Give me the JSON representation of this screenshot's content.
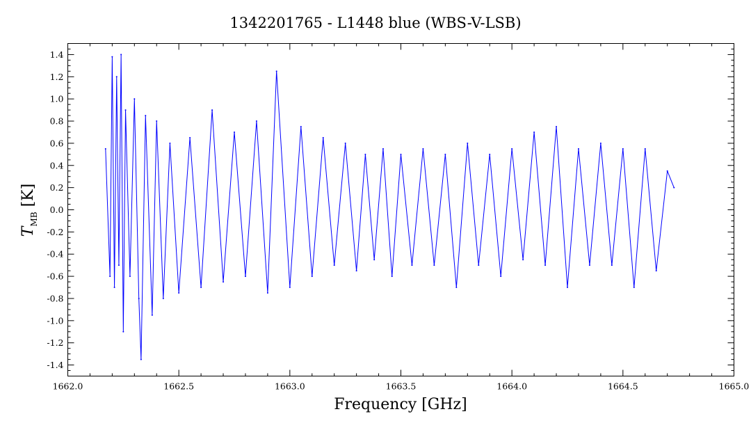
{
  "chart_data": {
    "type": "line",
    "title": "1342201765 - L1448 blue (WBS-V-LSB)",
    "xlabel": "Frequency [GHz]",
    "ylabel_main": "T",
    "ylabel_sub": "MB",
    "ylabel_unit": "[K]",
    "xlim": [
      1662.0,
      1665.0
    ],
    "ylim": [
      -1.5,
      1.5
    ],
    "xticks": [
      "1662.0",
      "1662.5",
      "1663.0",
      "1663.5",
      "1664.0",
      "1664.5",
      "1665.0"
    ],
    "yticks": [
      "1.4",
      "1.2",
      "1.0",
      "0.8",
      "0.6",
      "0.4",
      "0.2",
      "0.0",
      "-0.2",
      "-0.4",
      "-0.6",
      "-0.8",
      "-1.0",
      "-1.2",
      "-1.4"
    ],
    "grid": false,
    "series": [
      {
        "color": "#0000ff",
        "x": [
          1662.17,
          1662.19,
          1662.2,
          1662.21,
          1662.22,
          1662.23,
          1662.24,
          1662.25,
          1662.26,
          1662.28,
          1662.3,
          1662.32,
          1662.33,
          1662.35,
          1662.38,
          1662.4,
          1662.43,
          1662.46,
          1662.5,
          1662.55,
          1662.6,
          1662.65,
          1662.7,
          1662.75,
          1662.8,
          1662.85,
          1662.9,
          1662.94,
          1663.0,
          1663.05,
          1663.1,
          1663.15,
          1663.2,
          1663.25,
          1663.3,
          1663.34,
          1663.38,
          1663.42,
          1663.46,
          1663.5,
          1663.55,
          1663.6,
          1663.65,
          1663.7,
          1663.75,
          1663.8,
          1663.85,
          1663.9,
          1663.95,
          1664.0,
          1664.05,
          1664.1,
          1664.15,
          1664.2,
          1664.25,
          1664.3,
          1664.35,
          1664.4,
          1664.45,
          1664.5,
          1664.55,
          1664.6,
          1664.65,
          1664.7,
          1664.73
        ],
        "y": [
          0.55,
          -0.6,
          1.38,
          -0.7,
          1.2,
          -0.5,
          1.4,
          -1.1,
          0.9,
          -0.6,
          1.0,
          -0.8,
          -1.35,
          0.85,
          -0.95,
          0.8,
          -0.8,
          0.6,
          -0.75,
          0.65,
          -0.7,
          0.9,
          -0.65,
          0.7,
          -0.6,
          0.8,
          -0.75,
          1.25,
          -0.7,
          0.75,
          -0.6,
          0.65,
          -0.5,
          0.6,
          -0.55,
          0.5,
          -0.45,
          0.55,
          -0.6,
          0.5,
          -0.5,
          0.55,
          -0.5,
          0.5,
          -0.7,
          0.6,
          -0.5,
          0.5,
          -0.6,
          0.55,
          -0.45,
          0.7,
          -0.5,
          0.75,
          -0.7,
          0.55,
          -0.5,
          0.6,
          -0.5,
          0.55,
          -0.7,
          0.55,
          -0.55,
          0.35,
          0.2
        ]
      }
    ]
  }
}
